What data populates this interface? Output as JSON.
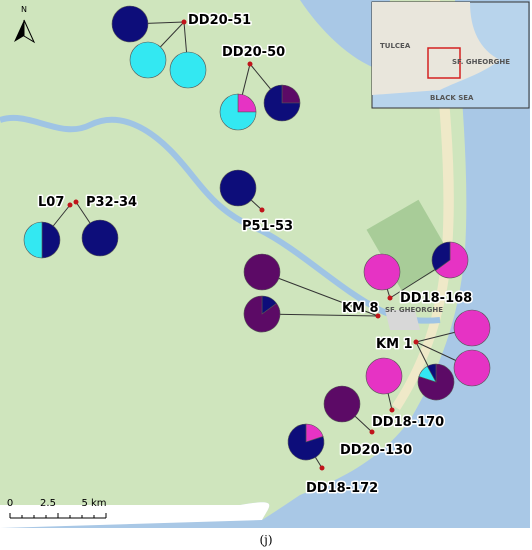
{
  "map": {
    "sites": [
      {
        "label": "DD20-51",
        "pies": [
          {
            "slices": [
              {
                "value": 100,
                "color": "#0d0d7a"
              }
            ]
          },
          {
            "slices": [
              {
                "value": 100,
                "color": "#33e8f2"
              }
            ]
          },
          {
            "slices": [
              {
                "value": 100,
                "color": "#33e8f2"
              }
            ]
          }
        ]
      },
      {
        "label": "DD20-50",
        "pies": [
          {
            "slices": [
              {
                "value": 25,
                "color": "#e633c4"
              },
              {
                "value": 75,
                "color": "#33e8f2"
              }
            ]
          },
          {
            "slices": [
              {
                "value": 25,
                "color": "#5c0a66"
              },
              {
                "value": 75,
                "color": "#0d0d7a"
              }
            ]
          }
        ]
      },
      {
        "label": "P51-53",
        "pies": [
          {
            "slices": [
              {
                "value": 100,
                "color": "#0d0d7a"
              }
            ]
          }
        ]
      },
      {
        "label": "L07",
        "pies": [
          {
            "slices": [
              {
                "value": 50,
                "color": "#0d0d7a"
              },
              {
                "value": 50,
                "color": "#33e8f2"
              }
            ]
          }
        ]
      },
      {
        "label": "P32-34",
        "pies": [
          {
            "slices": [
              {
                "value": 100,
                "color": "#0d0d7a"
              }
            ]
          }
        ]
      },
      {
        "label": "KM 8",
        "pies": [
          {
            "slices": [
              {
                "value": 100,
                "color": "#5c0a66"
              }
            ]
          },
          {
            "slices": [
              {
                "value": 15,
                "color": "#0d0d7a"
              },
              {
                "value": 85,
                "color": "#5c0a66"
              }
            ]
          }
        ]
      },
      {
        "label": "DD18-168",
        "pies": [
          {
            "slices": [
              {
                "value": 100,
                "color": "#e633c4"
              }
            ]
          },
          {
            "slices": [
              {
                "value": 65,
                "color": "#e633c4"
              },
              {
                "value": 35,
                "color": "#0d0d7a"
              }
            ]
          }
        ]
      },
      {
        "label": "KM 1",
        "pies": [
          {
            "slices": [
              {
                "value": 100,
                "color": "#e633c4"
              }
            ]
          },
          {
            "slices": [
              {
                "value": 100,
                "color": "#e633c4"
              }
            ]
          },
          {
            "slices": [
              {
                "value": 80,
                "color": "#5c0a66"
              },
              {
                "value": 12,
                "color": "#33e8f2"
              },
              {
                "value": 8,
                "color": "#0d0d7a"
              }
            ]
          }
        ]
      },
      {
        "label": "DD18-170",
        "pies": [
          {
            "slices": [
              {
                "value": 100,
                "color": "#e633c4"
              }
            ]
          }
        ]
      },
      {
        "label": "DD20-130",
        "pies": [
          {
            "slices": [
              {
                "value": 100,
                "color": "#5c0a66"
              }
            ]
          }
        ]
      },
      {
        "label": "DD18-172",
        "pies": [
          {
            "slices": [
              {
                "value": 20,
                "color": "#e633c4"
              },
              {
                "value": 80,
                "color": "#0d0d7a"
              }
            ]
          }
        ]
      }
    ],
    "town_label": "SF. GHEORGHE",
    "inset": {
      "labels": [
        "TULCEA",
        "SF. GHEORGHE",
        "BLACK SEA"
      ]
    },
    "scale_bar": {
      "labels": [
        "0",
        "2.5",
        "5 km"
      ]
    },
    "north_label": "N",
    "caption": "(j)"
  }
}
